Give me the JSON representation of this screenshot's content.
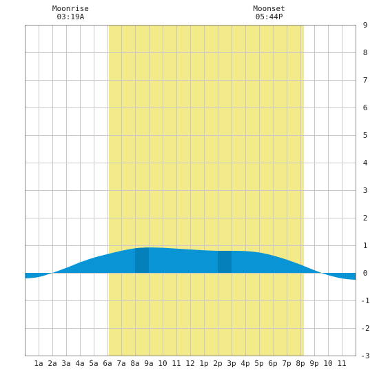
{
  "chart_data": {
    "type": "area",
    "moonrise": {
      "label": "Moonrise",
      "time": "03:19A",
      "hour": 3.32
    },
    "moonset": {
      "label": "Moonset",
      "time": "05:44P",
      "hour": 17.73
    },
    "daylight": {
      "start_hour": 6.1,
      "end_hour": 20.25
    },
    "xlim": [
      0,
      24
    ],
    "ylim": [
      -3,
      9
    ],
    "y_ticks": [
      -3,
      -2,
      -1,
      0,
      1,
      2,
      3,
      4,
      5,
      6,
      7,
      8,
      9
    ],
    "x_ticks": [
      {
        "hour": 1,
        "label": "1a"
      },
      {
        "hour": 2,
        "label": "2a"
      },
      {
        "hour": 3,
        "label": "3a"
      },
      {
        "hour": 4,
        "label": "4a"
      },
      {
        "hour": 5,
        "label": "5a"
      },
      {
        "hour": 6,
        "label": "6a"
      },
      {
        "hour": 7,
        "label": "7a"
      },
      {
        "hour": 8,
        "label": "8a"
      },
      {
        "hour": 9,
        "label": "9a"
      },
      {
        "hour": 10,
        "label": "10"
      },
      {
        "hour": 11,
        "label": "11"
      },
      {
        "hour": 12,
        "label": "12"
      },
      {
        "hour": 13,
        "label": "1p"
      },
      {
        "hour": 14,
        "label": "2p"
      },
      {
        "hour": 15,
        "label": "3p"
      },
      {
        "hour": 16,
        "label": "4p"
      },
      {
        "hour": 17,
        "label": "5p"
      },
      {
        "hour": 18,
        "label": "6p"
      },
      {
        "hour": 19,
        "label": "7p"
      },
      {
        "hour": 20,
        "label": "8p"
      },
      {
        "hour": 21,
        "label": "9p"
      },
      {
        "hour": 22,
        "label": "10"
      },
      {
        "hour": 23,
        "label": "11"
      }
    ],
    "tide": {
      "x": [
        0,
        1,
        2,
        3,
        4,
        5,
        6,
        7,
        8,
        9,
        10,
        11,
        12,
        13,
        14,
        15,
        16,
        17,
        18,
        19,
        20,
        21,
        22,
        23,
        24
      ],
      "y": [
        -0.2,
        -0.15,
        0.0,
        0.18,
        0.38,
        0.55,
        0.68,
        0.8,
        0.89,
        0.92,
        0.91,
        0.88,
        0.85,
        0.82,
        0.8,
        0.8,
        0.79,
        0.74,
        0.63,
        0.48,
        0.3,
        0.1,
        -0.08,
        -0.2,
        -0.25
      ]
    },
    "dark_bands": [
      [
        8,
        9
      ],
      [
        14,
        15
      ]
    ],
    "grid": true,
    "colors": {
      "daylight": "#f3eb89",
      "tide_light": "#0994d6",
      "tide_dark": "#0680bb",
      "grid": "#c8c8c8",
      "border": "#888888"
    }
  }
}
